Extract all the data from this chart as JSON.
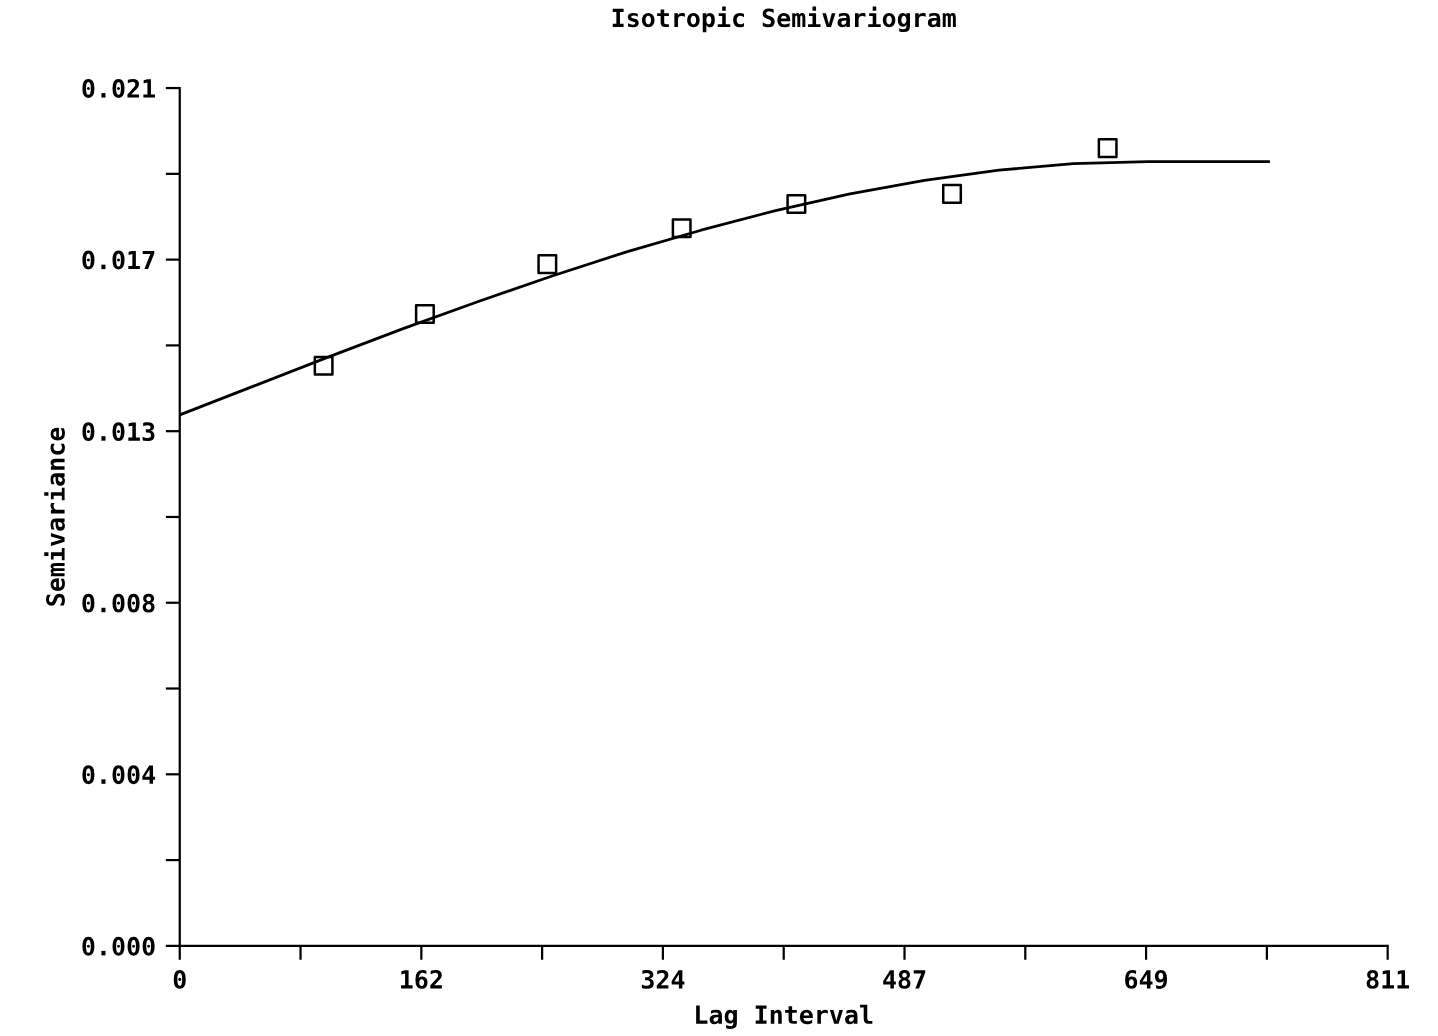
{
  "chart_data": {
    "type": "scatter",
    "title": "Isotropic Semivariogram",
    "xlabel": "Lag Interval",
    "ylabel": "Semivariance",
    "marker": "square",
    "grid": false,
    "legend": false,
    "xlim": [
      0,
      811
    ],
    "ylim": [
      0,
      0.021
    ],
    "xticks": [
      0,
      {
        "value": 81.1,
        "label": null
      },
      {
        "value": 162.2,
        "label": "162"
      },
      {
        "value": 243.3,
        "label": null
      },
      {
        "value": 324.4,
        "label": "324"
      },
      {
        "value": 405.5,
        "label": null
      },
      {
        "value": 486.6,
        "label": "487"
      },
      {
        "value": 567.7,
        "label": null
      },
      {
        "value": 648.8,
        "label": "649"
      },
      {
        "value": 729.9,
        "label": null
      },
      811
    ],
    "yticks": [
      {
        "value": 0,
        "label": "0.000"
      },
      {
        "value": 0.0021,
        "label": null
      },
      {
        "value": 0.0042,
        "label": "0.004"
      },
      {
        "value": 0.0063,
        "label": null
      },
      {
        "value": 0.0084,
        "label": "0.008"
      },
      {
        "value": 0.0105,
        "label": null
      },
      {
        "value": 0.0126,
        "label": "0.013"
      },
      {
        "value": 0.0147,
        "label": null
      },
      {
        "value": 0.0168,
        "label": "0.017"
      },
      {
        "value": 0.0189,
        "label": null
      },
      {
        "value": 0.021,
        "label": "0.021"
      }
    ],
    "series": [
      {
        "color": "#000000",
        "x": [
          96.6,
          164.6,
          246.8,
          337,
          414,
          518.5,
          623
        ],
        "values": [
          0.0142,
          0.01547,
          0.01669,
          0.01757,
          0.01816,
          0.01841,
          0.01953
        ]
      },
      {
        "type": "line",
        "color": "#000000",
        "marker": "none",
        "line_style": "solid",
        "x": [
          0,
          50,
          100,
          150,
          200,
          250,
          300,
          350,
          400,
          450,
          500,
          550,
          600,
          650,
          731
        ],
        "values": [
          0.013,
          0.01371,
          0.01442,
          0.01511,
          0.01577,
          0.0164,
          0.01699,
          0.01752,
          0.018,
          0.01841,
          0.01874,
          0.01899,
          0.01915,
          0.0192,
          0.0192
        ]
      }
    ]
  }
}
